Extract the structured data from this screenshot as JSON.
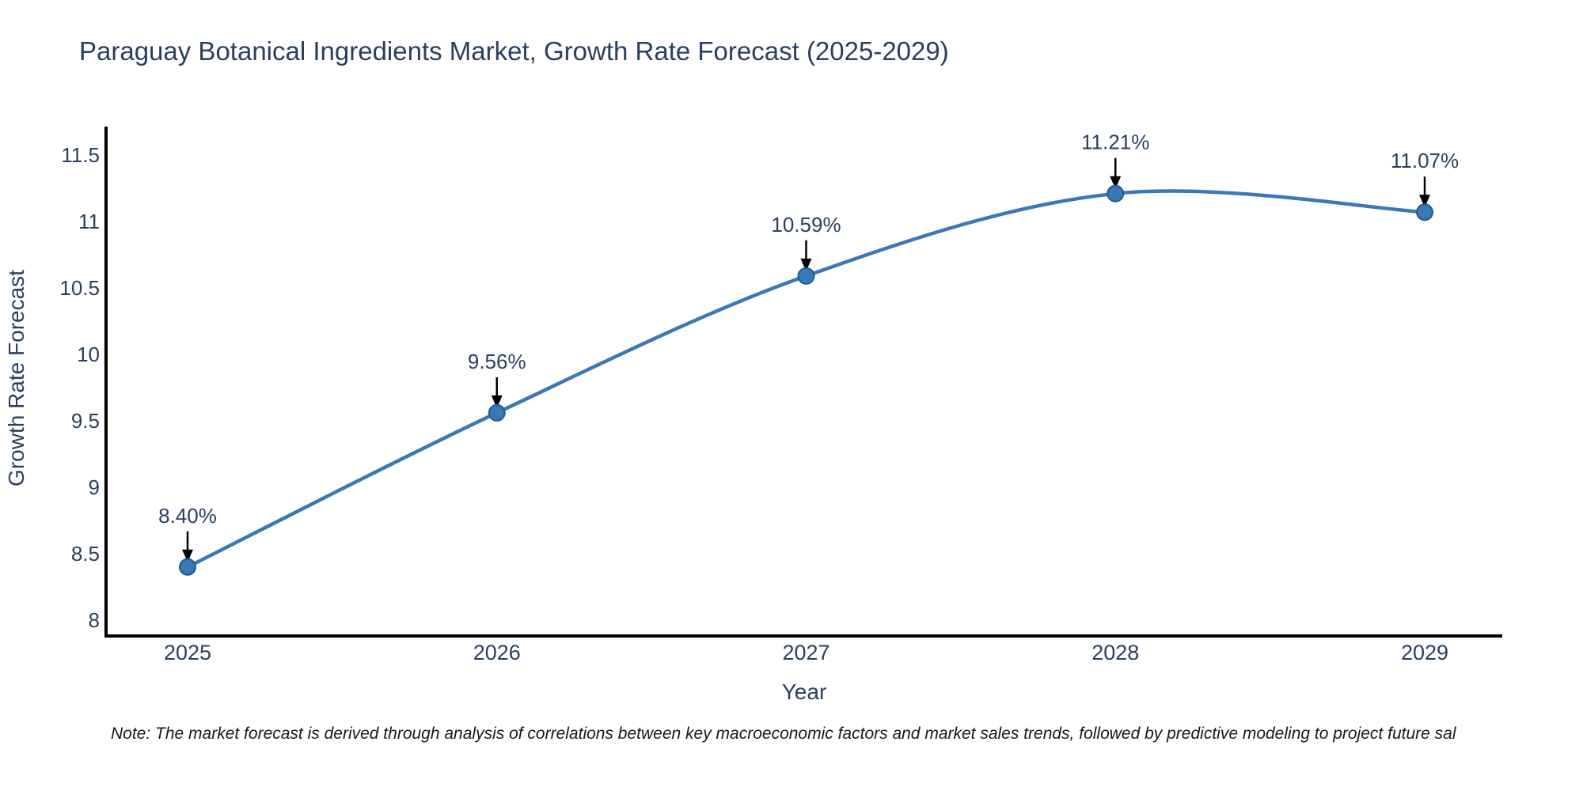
{
  "title": "Paraguay Botanical Ingredients Market, Growth Rate Forecast (2025-2029)",
  "note": "Note: The market forecast is derived through analysis of correlations between key macroeconomic factors and market sales trends, followed by predictive modeling to project future sal",
  "chart_data": {
    "type": "line",
    "title": "Paraguay Botanical Ingredients Market, Growth Rate Forecast (2025-2029)",
    "x": [
      2025,
      2026,
      2027,
      2028,
      2029
    ],
    "series": [
      {
        "name": "Growth Rate Forecast",
        "values": [
          8.4,
          9.56,
          10.59,
          11.21,
          11.07
        ]
      }
    ],
    "data_labels": [
      "8.40%",
      "9.56%",
      "10.59%",
      "11.21%",
      "11.07%"
    ],
    "xlabel": "Year",
    "ylabel": "Growth Rate Forecast",
    "x_tick_labels": [
      "2025",
      "2026",
      "2027",
      "2028",
      "2029"
    ],
    "y_ticks": [
      8,
      8.5,
      9,
      9.5,
      10,
      10.5,
      11,
      11.5
    ],
    "y_tick_labels": [
      "8",
      "8.5",
      "9",
      "9.5",
      "10",
      "10.5",
      "11",
      "11.5"
    ],
    "xlim": [
      2024.74,
      2029.25
    ],
    "ylim": [
      7.87,
      11.71
    ],
    "line_shape": "spline",
    "grid": false,
    "legend_position": "none",
    "colors": {
      "line": "#3c78b4",
      "marker_fill": "#3878b4",
      "marker_edge": "#205c8e",
      "axis": "#000000",
      "text": "#2a3f5f",
      "annotation_text": "#2a3f5f",
      "annotation_arrow": "#000000"
    }
  }
}
